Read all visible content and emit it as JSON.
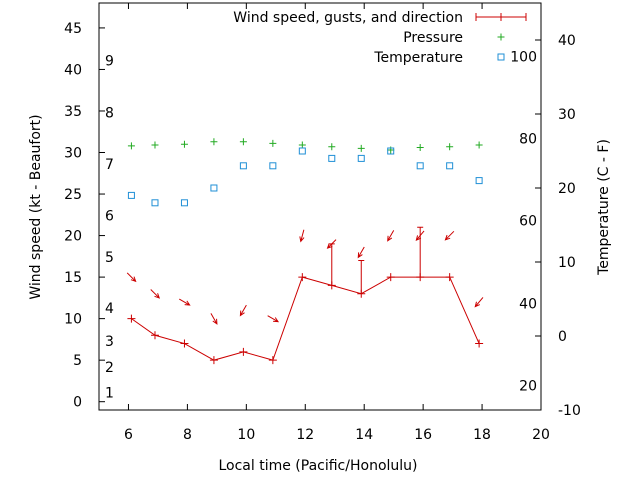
{
  "chart_data": {
    "type": "line",
    "title": "",
    "xlabel": "Local time (Pacific/Honolulu)",
    "ylabel": "Wind speed (kt - Beaufort)",
    "y2label": "Temperature (C - F)",
    "xlim": [
      5,
      20
    ],
    "ylim": [
      -1,
      48
    ],
    "y2lim": [
      -10,
      45
    ],
    "xticks": [
      6,
      8,
      10,
      12,
      14,
      16,
      18,
      20
    ],
    "yticks": [
      0,
      5,
      10,
      15,
      20,
      25,
      30,
      35,
      40,
      45
    ],
    "y2ticks": [
      -10,
      0,
      10,
      20,
      30,
      40
    ],
    "beaufort_labels": [
      {
        "label": "1",
        "kt": 1.1
      },
      {
        "label": "2",
        "kt": 4.2
      },
      {
        "label": "3",
        "kt": 7.3
      },
      {
        "label": "4",
        "kt": 11.3
      },
      {
        "label": "5",
        "kt": 17.4
      },
      {
        "label": "6",
        "kt": 22.4
      },
      {
        "label": "7",
        "kt": 28.6
      },
      {
        "label": "8",
        "kt": 34.8
      },
      {
        "label": "9",
        "kt": 41.1
      }
    ],
    "fahrenheit_labels": [
      {
        "label": "20",
        "c": -6.7
      },
      {
        "label": "40",
        "c": 4.4
      },
      {
        "label": "60",
        "c": 15.6
      },
      {
        "label": "80",
        "c": 26.7
      },
      {
        "label": "100",
        "c": 37.8
      }
    ],
    "series": [
      {
        "name": "Wind speed, gusts, and direction",
        "color": "#cc0000",
        "x": [
          6.1,
          6.9,
          7.9,
          8.9,
          9.9,
          10.9,
          11.9,
          12.9,
          13.9,
          14.9,
          15.9,
          16.9,
          17.9
        ],
        "values": [
          10,
          8,
          7,
          5,
          6,
          5,
          15,
          14,
          13,
          15,
          15,
          15,
          7
        ],
        "gusts": [
          null,
          null,
          null,
          null,
          null,
          null,
          null,
          19,
          17,
          null,
          21,
          null,
          null
        ],
        "direction_deg": [
          315,
          315,
          300,
          330,
          30,
          300,
          15,
          45,
          30,
          30,
          40,
          45,
          40
        ]
      },
      {
        "name": "Pressure",
        "color": "#22aa22",
        "x": [
          6.1,
          6.9,
          7.9,
          8.9,
          9.9,
          10.9,
          11.9,
          12.9,
          13.9,
          14.9,
          15.9,
          16.9,
          17.9
        ],
        "values": [
          30.8,
          30.9,
          31.0,
          31.3,
          31.3,
          31.1,
          30.9,
          30.7,
          30.5,
          30.3,
          30.6,
          30.7,
          30.9
        ]
      },
      {
        "name": "Temperature",
        "color": "#1f8fd6",
        "axis": "right",
        "x": [
          6.1,
          6.9,
          7.9,
          8.9,
          9.9,
          10.9,
          11.9,
          12.9,
          13.9,
          14.9,
          15.9,
          16.9,
          17.9
        ],
        "values": [
          19,
          18,
          18,
          20,
          23,
          23,
          25,
          24,
          24,
          25,
          23,
          23,
          21
        ]
      }
    ],
    "legend_position": "top-right",
    "grid": false
  }
}
